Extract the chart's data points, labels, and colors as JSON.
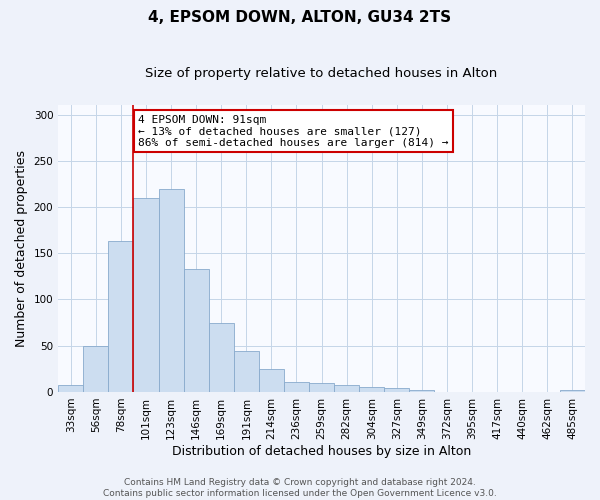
{
  "title": "4, EPSOM DOWN, ALTON, GU34 2TS",
  "subtitle": "Size of property relative to detached houses in Alton",
  "xlabel": "Distribution of detached houses by size in Alton",
  "ylabel": "Number of detached properties",
  "categories": [
    "33sqm",
    "56sqm",
    "78sqm",
    "101sqm",
    "123sqm",
    "146sqm",
    "169sqm",
    "191sqm",
    "214sqm",
    "236sqm",
    "259sqm",
    "282sqm",
    "304sqm",
    "327sqm",
    "349sqm",
    "372sqm",
    "395sqm",
    "417sqm",
    "440sqm",
    "462sqm",
    "485sqm"
  ],
  "values": [
    7,
    50,
    163,
    210,
    220,
    133,
    75,
    44,
    25,
    11,
    10,
    8,
    5,
    4,
    2,
    0,
    0,
    0,
    0,
    0,
    2
  ],
  "bar_color": "#ccddf0",
  "bar_edge_color": "#88aacc",
  "vline_color": "#cc0000",
  "vline_pos": 2.5,
  "annotation_text": "4 EPSOM DOWN: 91sqm\n← 13% of detached houses are smaller (127)\n86% of semi-detached houses are larger (814) →",
  "annotation_box_facecolor": "#ffffff",
  "annotation_box_edgecolor": "#cc0000",
  "ylim": [
    0,
    310
  ],
  "yticks": [
    0,
    50,
    100,
    150,
    200,
    250,
    300
  ],
  "bg_color": "#eef2fa",
  "plot_bg_color": "#f8faff",
  "grid_color": "#c5d5e8",
  "title_fontsize": 11,
  "subtitle_fontsize": 9.5,
  "axis_label_fontsize": 9,
  "tick_fontsize": 7.5,
  "annotation_fontsize": 8,
  "footer_fontsize": 6.5,
  "footer_line1": "Contains HM Land Registry data © Crown copyright and database right 2024.",
  "footer_line2": "Contains public sector information licensed under the Open Government Licence v3.0."
}
